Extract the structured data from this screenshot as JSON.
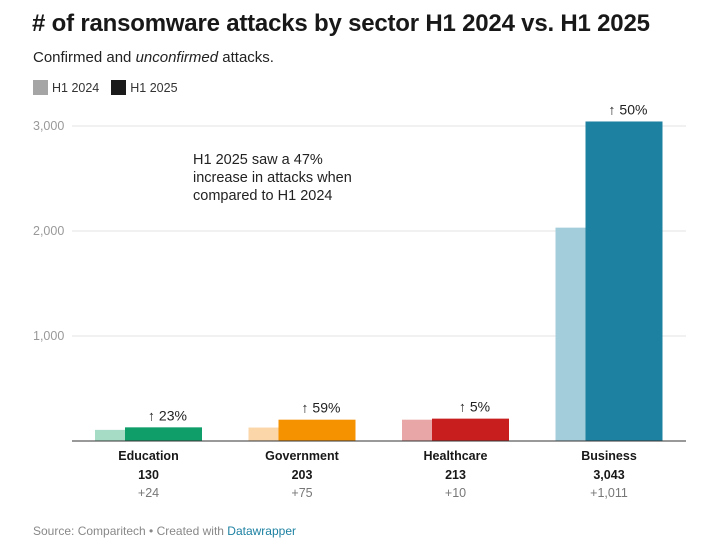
{
  "title": "# of ransomware attacks by sector H1 2024 vs. H1 2025",
  "subtitle": {
    "prefix": "Confirmed and ",
    "emphasis": "unconfirmed",
    "suffix": " attacks."
  },
  "annotation": [
    "H1 2025 saw a 47%",
    "increase in attacks when",
    "compared to H1 2024"
  ],
  "footer": {
    "source": "Source: Comparitech • Created with ",
    "link": "Datawrapper"
  },
  "chart_data": {
    "type": "bar",
    "title": "# of ransomware attacks by sector H1 2024 vs. H1 2025",
    "xlabel": "",
    "ylabel": "",
    "ylim": [
      0,
      3000
    ],
    "yticks": [
      {
        "value": 1000,
        "label": "1,000"
      },
      {
        "value": 2000,
        "label": "2,000"
      },
      {
        "value": 3000,
        "label": "3,000"
      }
    ],
    "grid": true,
    "legend": "top-left",
    "categories": [
      "Education",
      "Government",
      "Healthcare",
      "Business"
    ],
    "series": [
      {
        "name": "H1 2024",
        "legend_color": "#a5a5a5",
        "values": [
          106,
          128,
          203,
          2032
        ]
      },
      {
        "name": "H1 2025",
        "legend_color": "#1a1a1a",
        "values": [
          130,
          203,
          213,
          3043
        ]
      }
    ],
    "category_colors": [
      {
        "light": "#a6dcc6",
        "dark": "#0f9d6a"
      },
      {
        "light": "#fad6a8",
        "dark": "#f59200"
      },
      {
        "light": "#e8a6a6",
        "dark": "#c81e1e"
      },
      {
        "light": "#a3cddb",
        "dark": "#1d81a2"
      }
    ],
    "change_labels": [
      "↑ 23%",
      "↑ 59%",
      "↑ 5%",
      "↑ 50%"
    ],
    "value_labels": [
      "130",
      "203",
      "213",
      "3,043"
    ],
    "diff_labels": [
      "+24",
      "+75",
      "+10",
      "+1,011"
    ]
  }
}
